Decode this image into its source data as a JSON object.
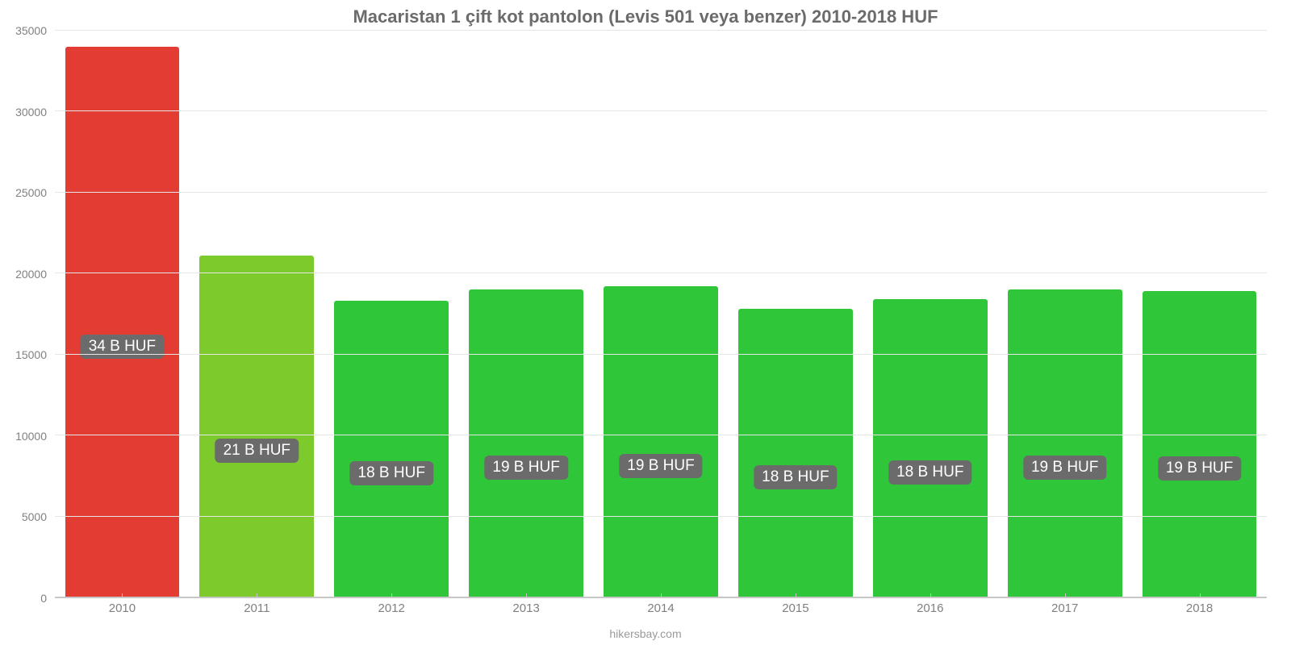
{
  "chart": {
    "type": "bar",
    "title": "Macaristan 1 çift kot pantolon (Levis 501 veya benzer) 2010-2018 HUF",
    "title_fontsize": 22,
    "title_color": "#6b6b6b",
    "background_color": "#ffffff",
    "grid_color": "#e6e6e6",
    "axis_line_color": "#c8c8c8",
    "tick_label_color": "#808080",
    "tick_label_fontsize": 14,
    "x_label_fontsize": 15,
    "value_label_fontsize": 19,
    "value_label_bg": "#6b6b6b",
    "value_label_text_color": "#ffffff",
    "ylim": [
      0,
      35000
    ],
    "ytick_step": 5000,
    "yticks": [
      0,
      5000,
      10000,
      15000,
      20000,
      25000,
      30000,
      35000
    ],
    "bar_width": 0.85,
    "categories": [
      "2010",
      "2011",
      "2012",
      "2013",
      "2014",
      "2015",
      "2016",
      "2017",
      "2018"
    ],
    "values": [
      34000,
      21100,
      18300,
      19000,
      19200,
      17800,
      18400,
      19000,
      18900
    ],
    "value_labels": [
      "34 B HUF",
      "21 B HUF",
      "18 B HUF",
      "19 B HUF",
      "19 B HUF",
      "18 B HUF",
      "18 B HUF",
      "19 B HUF",
      "19 B HUF"
    ],
    "bar_colors": [
      "#e23c33",
      "#7cca2c",
      "#2fc739",
      "#2fc739",
      "#2fc739",
      "#2fc739",
      "#2fc739",
      "#2fc739",
      "#2fc739"
    ],
    "footer": "hikersbay.com",
    "footer_color": "#9a9a9a",
    "footer_fontsize": 14
  }
}
